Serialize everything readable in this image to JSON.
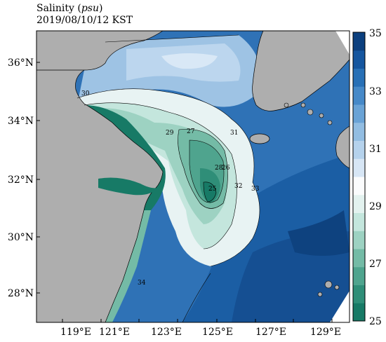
{
  "title": {
    "prefix": "Salinity",
    "unit": "psu",
    "timestamp": "2019/08/10/12 KST"
  },
  "map": {
    "lon_range": [
      118,
      130
    ],
    "lat_range": [
      27,
      37
    ],
    "x_ticks": [
      "119°E",
      "121°E",
      "123°E",
      "125°E",
      "127°E",
      "129°E"
    ],
    "y_ticks": [
      "28°N",
      "30°N",
      "32°N",
      "34°N",
      "36°N"
    ],
    "contour_labels": [
      "25",
      "26",
      "27",
      "28",
      "29",
      "30",
      "31",
      "32",
      "33",
      "34"
    ]
  },
  "colorbar": {
    "min": 25,
    "max": 35,
    "tick_labels": [
      "25",
      "27",
      "29",
      "31",
      "33",
      "35"
    ],
    "colors": [
      "#177a66",
      "#2f8e78",
      "#4fa48e",
      "#74bba6",
      "#9dd2c2",
      "#c4e6dd",
      "#e3f2ef",
      "#fbfcfd",
      "#d7e6f5",
      "#b5d2ec",
      "#92bde2",
      "#6aa3d6",
      "#4689c8",
      "#2870b6",
      "#15569f",
      "#0b3f7e"
    ]
  },
  "legend_colors": {
    "land": "#aeaeae",
    "border": "#000000"
  }
}
